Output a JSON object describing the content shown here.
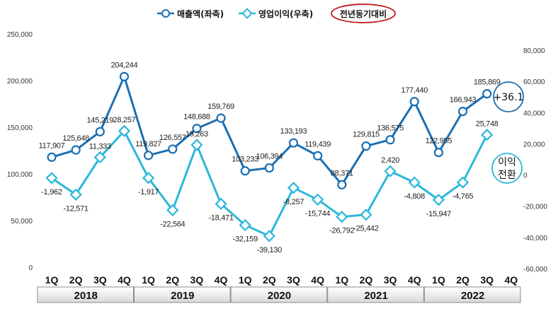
{
  "chart_data": {
    "type": "line",
    "title": "",
    "legend": {
      "position": "top-center",
      "items": [
        "매출액(좌축)",
        "영업이익(우축)",
        "전년동기대비"
      ]
    },
    "quarters": [
      "1Q",
      "2Q",
      "3Q",
      "4Q",
      "1Q",
      "2Q",
      "3Q",
      "4Q",
      "1Q",
      "2Q",
      "3Q",
      "4Q",
      "1Q",
      "2Q",
      "3Q",
      "4Q",
      "1Q",
      "2Q",
      "3Q",
      "4Q"
    ],
    "years": [
      "2018",
      "2019",
      "2020",
      "2021",
      "2022"
    ],
    "y_left": {
      "min": 0,
      "max": 250000,
      "ticks": [
        "0",
        "50,000",
        "100,000",
        "150,000",
        "200,000",
        "250,000"
      ]
    },
    "y_right": {
      "min": -60000,
      "max": 80000,
      "ticks": [
        "-60,000",
        "-40,000",
        "-20,000",
        "0",
        "20,000",
        "40,000",
        "60,000",
        "80,000"
      ]
    },
    "series": [
      {
        "name": "매출액(좌축)",
        "axis": "left",
        "color": "#1a6fb3",
        "values": [
          117907,
          125648,
          145219,
          204244,
          119827,
          126557,
          148688,
          159769,
          103233,
          106394,
          133193,
          119439,
          88371,
          129815,
          136575,
          177440,
          122955,
          166943,
          185869,
          null
        ],
        "labels": [
          "117,907",
          "125,648",
          "145,219",
          "204,244",
          "119,827",
          "126,557",
          "148,688",
          "159,769",
          "103,233",
          "106,394",
          "133,193",
          "119,439",
          "88,371",
          "129,815",
          "136,575",
          "177,440",
          "122,955",
          "166,943",
          "185,869",
          ""
        ]
      },
      {
        "name": "영업이익(우축)",
        "axis": "right",
        "color": "#2bb7da",
        "values": [
          -1962,
          -12571,
          11333,
          28257,
          -1917,
          -22564,
          19263,
          -18471,
          -32159,
          -39130,
          -8257,
          -15744,
          -26792,
          -25442,
          2420,
          -4808,
          -15947,
          -4765,
          25748,
          null
        ],
        "labels": [
          "-1,962",
          "-12,571",
          "11,333",
          "28,257",
          "-1,917",
          "-22,564",
          "19,263",
          "-18,471",
          "-32,159",
          "-39,130",
          "-8,257",
          "-15,744",
          "-26,792",
          "-25,442",
          "2,420",
          "-4,808",
          "-15,947",
          "-4,765",
          "25,748",
          ""
        ]
      }
    ],
    "annotations": {
      "revenue_yoy": "+36.1",
      "profit_line1": "이익",
      "profit_line2": "전환"
    }
  }
}
